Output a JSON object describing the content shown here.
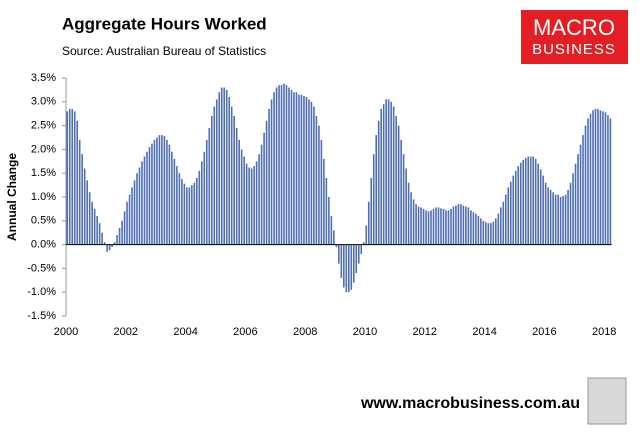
{
  "chart_data": {
    "type": "bar",
    "title": "Aggregate Hours Worked",
    "subtitle": "Source: Australian Bureau of Statistics",
    "y_label": "Annual Change",
    "logo": [
      "MACRO",
      "BUSINESS"
    ],
    "footer": "www.macrobusiness.com.au",
    "color": "#4f6fb5",
    "categories": [
      "2000",
      null,
      null,
      null,
      null,
      null,
      null,
      null,
      null,
      null,
      null,
      null,
      null,
      null,
      null,
      null,
      null,
      null,
      null,
      null,
      null,
      null,
      null,
      null,
      "2002",
      null,
      null,
      null,
      null,
      null,
      null,
      null,
      null,
      null,
      null,
      null,
      null,
      null,
      null,
      null,
      null,
      null,
      null,
      null,
      null,
      null,
      null,
      null,
      "2004",
      null,
      null,
      null,
      null,
      null,
      null,
      null,
      null,
      null,
      null,
      null,
      null,
      null,
      null,
      null,
      null,
      null,
      null,
      null,
      null,
      null,
      null,
      null,
      "2006",
      null,
      null,
      null,
      null,
      null,
      null,
      null,
      null,
      null,
      null,
      null,
      null,
      null,
      null,
      null,
      null,
      null,
      null,
      null,
      null,
      null,
      null,
      null,
      "2008",
      null,
      null,
      null,
      null,
      null,
      null,
      null,
      null,
      null,
      null,
      null,
      null,
      null,
      null,
      null,
      null,
      null,
      null,
      null,
      null,
      null,
      null,
      null,
      "2010",
      null,
      null,
      null,
      null,
      null,
      null,
      null,
      null,
      null,
      null,
      null,
      null,
      null,
      null,
      null,
      null,
      null,
      null,
      null,
      null,
      null,
      null,
      null,
      "2012",
      null,
      null,
      null,
      null,
      null,
      null,
      null,
      null,
      null,
      null,
      null,
      null,
      null,
      null,
      null,
      null,
      null,
      null,
      null,
      null,
      null,
      null,
      null,
      "2014",
      null,
      null,
      null,
      null,
      null,
      null,
      null,
      null,
      null,
      null,
      null,
      null,
      null,
      null,
      null,
      null,
      null,
      null,
      null,
      null,
      null,
      null,
      null,
      "2016",
      null,
      null,
      null,
      null,
      null,
      null,
      null,
      null,
      null,
      null,
      null,
      null,
      null,
      null,
      null,
      null,
      null,
      null,
      null,
      null,
      null,
      null,
      null,
      "2018",
      null,
      null
    ],
    "values": [
      2.8,
      2.85,
      2.85,
      2.8,
      2.6,
      2.2,
      1.9,
      1.6,
      1.35,
      1.1,
      0.9,
      0.75,
      0.6,
      0.45,
      0.25,
      0.05,
      -0.15,
      -0.12,
      -0.05,
      0.05,
      0.2,
      0.35,
      0.5,
      0.7,
      0.9,
      1.05,
      1.2,
      1.35,
      1.5,
      1.62,
      1.75,
      1.85,
      1.95,
      2.05,
      2.12,
      2.2,
      2.25,
      2.3,
      2.3,
      2.28,
      2.2,
      2.1,
      1.95,
      1.8,
      1.65,
      1.5,
      1.38,
      1.28,
      1.2,
      1.2,
      1.25,
      1.3,
      1.4,
      1.55,
      1.75,
      1.95,
      2.2,
      2.45,
      2.7,
      2.9,
      3.05,
      3.2,
      3.3,
      3.3,
      3.25,
      3.1,
      2.9,
      2.7,
      2.45,
      2.2,
      2.0,
      1.85,
      1.7,
      1.62,
      1.6,
      1.65,
      1.75,
      1.9,
      2.1,
      2.35,
      2.6,
      2.85,
      3.05,
      3.2,
      3.3,
      3.35,
      3.35,
      3.38,
      3.35,
      3.3,
      3.25,
      3.2,
      3.2,
      3.15,
      3.15,
      3.12,
      3.1,
      3.05,
      3.0,
      2.9,
      2.7,
      2.5,
      2.2,
      1.8,
      1.4,
      1.0,
      0.6,
      0.3,
      -0.05,
      -0.4,
      -0.7,
      -0.9,
      -1.0,
      -1.0,
      -0.95,
      -0.8,
      -0.6,
      -0.4,
      -0.2,
      0.05,
      0.4,
      0.9,
      1.4,
      1.9,
      2.3,
      2.6,
      2.85,
      2.95,
      3.05,
      3.05,
      3.0,
      2.9,
      2.7,
      2.5,
      2.2,
      1.9,
      1.6,
      1.3,
      1.1,
      0.95,
      0.85,
      0.8,
      0.78,
      0.75,
      0.72,
      0.7,
      0.72,
      0.75,
      0.78,
      0.78,
      0.76,
      0.75,
      0.72,
      0.72,
      0.75,
      0.8,
      0.82,
      0.85,
      0.85,
      0.82,
      0.8,
      0.78,
      0.72,
      0.68,
      0.65,
      0.6,
      0.55,
      0.5,
      0.47,
      0.45,
      0.45,
      0.48,
      0.55,
      0.65,
      0.78,
      0.9,
      1.05,
      1.2,
      1.32,
      1.45,
      1.55,
      1.65,
      1.72,
      1.78,
      1.82,
      1.85,
      1.85,
      1.85,
      1.8,
      1.7,
      1.58,
      1.45,
      1.3,
      1.2,
      1.15,
      1.1,
      1.05,
      1.05,
      1.0,
      1.02,
      1.05,
      1.15,
      1.3,
      1.5,
      1.7,
      1.9,
      2.1,
      2.3,
      2.5,
      2.65,
      2.75,
      2.82,
      2.85,
      2.85,
      2.82,
      2.8,
      2.78,
      2.72,
      2.65
    ],
    "ylim": [
      -1.5,
      3.5
    ],
    "yticks": [
      {
        "value": -1.5,
        "label": "-1.5%"
      },
      {
        "value": -1,
        "label": "-1.0%"
      },
      {
        "value": -0.5,
        "label": "-0.5%"
      },
      {
        "value": 0,
        "label": "0.0%"
      },
      {
        "value": 0.5,
        "label": "0.5%"
      },
      {
        "value": 1,
        "label": "1.0%"
      },
      {
        "value": 1.5,
        "label": "1.5%"
      },
      {
        "value": 2,
        "label": "2.0%"
      },
      {
        "value": 2.5,
        "label": "2.5%"
      },
      {
        "value": 3,
        "label": "3.0%"
      },
      {
        "value": 3.5,
        "label": "3.5%"
      }
    ],
    "grid": false
  }
}
